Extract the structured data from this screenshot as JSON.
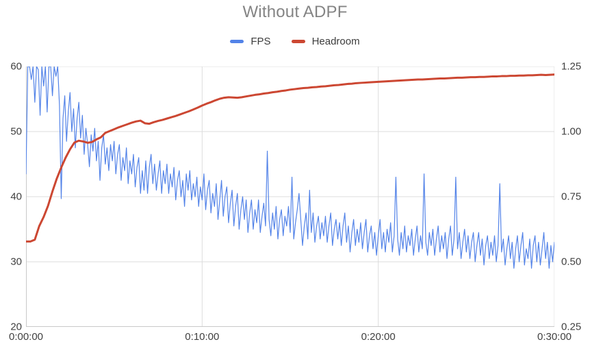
{
  "title": "Without ADPF",
  "legend": {
    "items": [
      {
        "label": "FPS",
        "color": "#5383e8"
      },
      {
        "label": "Headroom",
        "color": "#cc4732"
      }
    ]
  },
  "colors": {
    "fps_line": "#5383e8",
    "headroom_line": "#cc4732",
    "grid": "#dcdcdc",
    "plot_border": "#c9c9c9",
    "axis_text": "#404040",
    "title_text": "#848484"
  },
  "chart_data": {
    "type": "line",
    "title": "Without ADPF",
    "grid": true,
    "legend_position": "top",
    "x_axis": {
      "tick_labels": [
        "0:00:00",
        "0:10:00",
        "0:20:00",
        "0:30:00"
      ],
      "tick_seconds": [
        0,
        600,
        1200,
        1800
      ],
      "range_seconds": [
        0,
        1800
      ]
    },
    "y_axis_left": {
      "tick_labels": [
        "60",
        "50",
        "40",
        "30",
        "20"
      ],
      "tick_values": [
        60,
        50,
        40,
        30,
        20
      ],
      "range": [
        20,
        60
      ],
      "series": "FPS"
    },
    "y_axis_right": {
      "tick_labels": [
        "1.25",
        "1.00",
        "0.75",
        "0.50",
        "0.25"
      ],
      "tick_values": [
        1.25,
        1.0,
        0.75,
        0.5,
        0.25
      ],
      "range": [
        0.25,
        1.25
      ],
      "series": "Headroom"
    },
    "series": [
      {
        "name": "FPS",
        "axis": "left",
        "color": "#5383e8",
        "stroke_width": 1.2,
        "dt_seconds": 6,
        "values": [
          43.5,
          60,
          60,
          58,
          60,
          54.5,
          60,
          59.5,
          52.5,
          60,
          57,
          60,
          53,
          60,
          60,
          55.5,
          60,
          58.5,
          60,
          54,
          39.7,
          52,
          55.5,
          48.5,
          53,
          56,
          50,
          53.5,
          47.5,
          52,
          54.5,
          49,
          52.5,
          46.5,
          50.5,
          48,
          44.6,
          49.5,
          47,
          50.5,
          45.5,
          48.5,
          42.5,
          47.5,
          49.5,
          45,
          47.5,
          44,
          48,
          45.5,
          48.5,
          43.5,
          46.5,
          48,
          42.5,
          46,
          44,
          47.5,
          42,
          45.5,
          43.5,
          46.5,
          41.5,
          44.5,
          46,
          40.5,
          44,
          41,
          45.5,
          40.5,
          44.5,
          46.5,
          42,
          45,
          41,
          43.5,
          45.5,
          40.5,
          44,
          42,
          45,
          40.5,
          43.5,
          41.5,
          44.5,
          39.5,
          42.5,
          44,
          40,
          42.5,
          38.5,
          43.5,
          41,
          44,
          39.5,
          42,
          40,
          43,
          38.5,
          41.5,
          39.5,
          43.5,
          38,
          41,
          42.5,
          37.5,
          40.5,
          38.5,
          42,
          36.5,
          39.5,
          42.5,
          37,
          40,
          41.5,
          36,
          39,
          41,
          35.5,
          38.5,
          40.5,
          35,
          38,
          40,
          36.5,
          39.5,
          34.5,
          37.5,
          39.5,
          35,
          38,
          36,
          39.5,
          34.5,
          37,
          39,
          35.5,
          47,
          36.5,
          34,
          37.5,
          35,
          38.5,
          33.5,
          36.5,
          38,
          34,
          37,
          35.5,
          38.5,
          34.5,
          43,
          33.5,
          36,
          38,
          40.5,
          36.5,
          32.5,
          35.5,
          37.5,
          33.5,
          41,
          34.5,
          37.5,
          33,
          35.5,
          37,
          33.5,
          36,
          34,
          37,
          33,
          35.5,
          37.5,
          32.5,
          35,
          36.5,
          33.5,
          36,
          32.5,
          35.5,
          37.5,
          33,
          35.5,
          31.5,
          34.5,
          36.5,
          32.5,
          35,
          33,
          36,
          32,
          34.5,
          36.5,
          31.5,
          34,
          35.5,
          32,
          34.5,
          31,
          34,
          36.5,
          32,
          34.5,
          31.5,
          35,
          33,
          36,
          31.5,
          34,
          43,
          33.5,
          31,
          34.5,
          32,
          35.5,
          31.5,
          34,
          32.5,
          35,
          31,
          33.5,
          35.5,
          31.5,
          34,
          32,
          43.5,
          33,
          31,
          34.5,
          32.5,
          35,
          31,
          33.5,
          35.5,
          31.5,
          34,
          32,
          34.5,
          30.5,
          33.5,
          35.5,
          31,
          33.5,
          43,
          32,
          34.5,
          30.5,
          33,
          35,
          31.5,
          34,
          30.5,
          33,
          34.5,
          30,
          32.5,
          34.5,
          31,
          33.5,
          29.5,
          32.5,
          34,
          30.5,
          33,
          31,
          34,
          30,
          32.5,
          42,
          31.5,
          33.5,
          29.5,
          32,
          34,
          30.5,
          33,
          29,
          32,
          34,
          30,
          32.5,
          34.5,
          29.5,
          32,
          30.5,
          33.5,
          29,
          32.5,
          34,
          30,
          33,
          29.5,
          32,
          34.5,
          30.5,
          33,
          29,
          32.5,
          30,
          33
        ]
      },
      {
        "name": "Headroom",
        "axis": "right",
        "color": "#cc4732",
        "stroke_width": 3,
        "dt_seconds": 15,
        "values": [
          0.578,
          0.578,
          0.585,
          0.637,
          0.672,
          0.715,
          0.77,
          0.82,
          0.862,
          0.9,
          0.932,
          0.958,
          0.965,
          0.962,
          0.957,
          0.96,
          0.97,
          0.978,
          0.995,
          1.002,
          1.009,
          1.016,
          1.022,
          1.028,
          1.034,
          1.039,
          1.042,
          1.032,
          1.03,
          1.036,
          1.041,
          1.045,
          1.05,
          1.055,
          1.06,
          1.066,
          1.072,
          1.078,
          1.085,
          1.092,
          1.1,
          1.107,
          1.113,
          1.12,
          1.126,
          1.13,
          1.132,
          1.131,
          1.13,
          1.132,
          1.135,
          1.138,
          1.141,
          1.143,
          1.146,
          1.148,
          1.151,
          1.153,
          1.156,
          1.158,
          1.161,
          1.163,
          1.165,
          1.167,
          1.168,
          1.17,
          1.171,
          1.173,
          1.174,
          1.176,
          1.178,
          1.179,
          1.181,
          1.183,
          1.184,
          1.186,
          1.187,
          1.188,
          1.189,
          1.19,
          1.191,
          1.192,
          1.193,
          1.194,
          1.195,
          1.196,
          1.197,
          1.198,
          1.199,
          1.2,
          1.2,
          1.201,
          1.202,
          1.203,
          1.204,
          1.204,
          1.205,
          1.206,
          1.207,
          1.207,
          1.208,
          1.209,
          1.209,
          1.21,
          1.21,
          1.211,
          1.212,
          1.212,
          1.213,
          1.213,
          1.214,
          1.214,
          1.215,
          1.215,
          1.216,
          1.216,
          1.217,
          1.218,
          1.217,
          1.218,
          1.219
        ]
      }
    ]
  }
}
